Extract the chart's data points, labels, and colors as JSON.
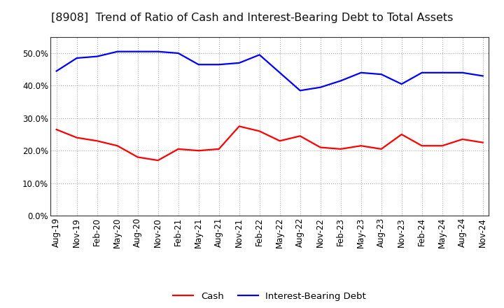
{
  "title": "[8908]  Trend of Ratio of Cash and Interest-Bearing Debt to Total Assets",
  "x_labels": [
    "Aug-19",
    "Nov-19",
    "Feb-20",
    "May-20",
    "Aug-20",
    "Nov-20",
    "Feb-21",
    "May-21",
    "Aug-21",
    "Nov-21",
    "Feb-22",
    "May-22",
    "Aug-22",
    "Nov-22",
    "Feb-23",
    "May-23",
    "Aug-23",
    "Nov-23",
    "Feb-24",
    "May-24",
    "Aug-24",
    "Nov-24"
  ],
  "cash": [
    26.5,
    24.0,
    23.0,
    21.5,
    18.0,
    17.0,
    20.5,
    20.0,
    20.5,
    27.5,
    26.0,
    23.0,
    24.5,
    21.0,
    20.5,
    21.5,
    20.5,
    25.0,
    21.5,
    21.5,
    23.5,
    22.5
  ],
  "interest_bearing_debt": [
    44.5,
    48.5,
    49.0,
    50.5,
    50.5,
    50.5,
    50.0,
    46.5,
    46.5,
    47.0,
    49.5,
    44.0,
    38.5,
    39.5,
    41.5,
    44.0,
    43.5,
    40.5,
    44.0,
    44.0,
    44.0,
    43.0
  ],
  "cash_color": "#ff0000",
  "debt_color": "#0000ff",
  "background_color": "#ffffff",
  "plot_bg_color": "#ffffff",
  "grid_color": "#aaaaaa",
  "ylim": [
    0,
    55
  ],
  "yticks": [
    0,
    10,
    20,
    30,
    40,
    50
  ],
  "legend_labels": [
    "Cash",
    "Interest-Bearing Debt"
  ],
  "title_fontsize": 11.5,
  "axis_fontsize": 8.5,
  "legend_fontsize": 9.5
}
